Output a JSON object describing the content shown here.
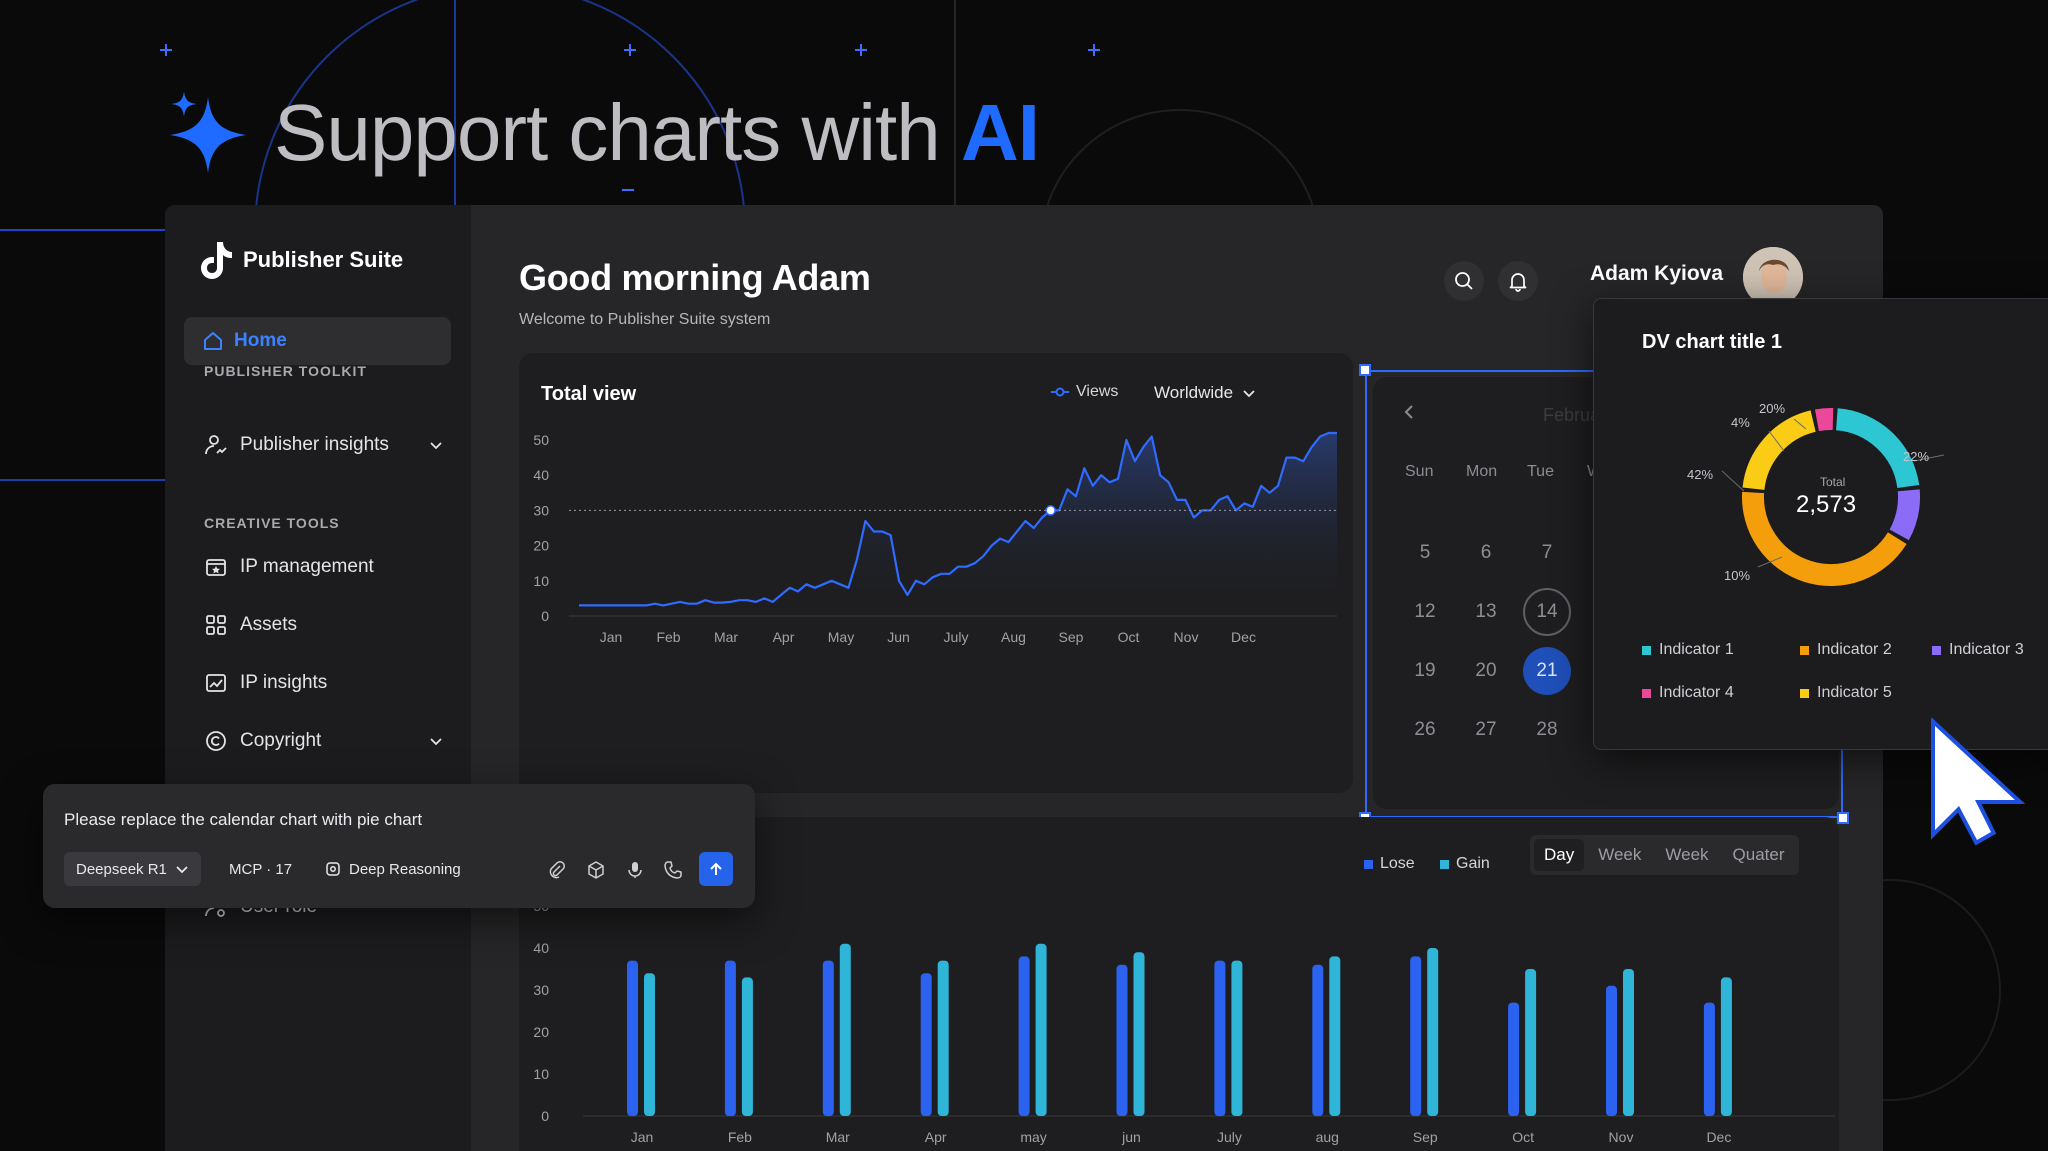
{
  "hero": {
    "title_prefix": "Support charts with ",
    "title_accent": "AI"
  },
  "app": {
    "brand": "Publisher Suite",
    "nav": {
      "home": "Home",
      "section_toolkit": "PUBLISHER TOOLKIT",
      "publisher_insights": "Publisher insights",
      "section_creative": "CREATIVE TOOLS",
      "ip_management": "IP management",
      "assets": "Assets",
      "ip_insights": "IP insights",
      "copyright": "Copyright",
      "user_role": "User role"
    },
    "greeting": "Good morning Adam",
    "subtitle": "Welcome to Publisher Suite system",
    "user_name": "Adam Kyiova"
  },
  "total_view": {
    "title": "Total view",
    "legend_label": "Views",
    "region_dropdown": "Worldwide",
    "accent_color": "#2f6bff"
  },
  "chart_data": [
    {
      "type": "line",
      "title": "Total view",
      "series": [
        {
          "name": "Views",
          "values": [
            3,
            3,
            3,
            3,
            3,
            3,
            3,
            3,
            3,
            3.5,
            3,
            3.5,
            4,
            3.5,
            3.5,
            4.5,
            3.8,
            3.8,
            4,
            4.5,
            4.5,
            4,
            5,
            4,
            6,
            8,
            7,
            9,
            8,
            9,
            10,
            9,
            8,
            16,
            27,
            24,
            24,
            23,
            10,
            6,
            10,
            9,
            11,
            12,
            12,
            14,
            14,
            15,
            17,
            20,
            22,
            21,
            24,
            27,
            25,
            28,
            30,
            30,
            36,
            34,
            42,
            37,
            40,
            38,
            39,
            50,
            44,
            48,
            51,
            40,
            38,
            33,
            33,
            28,
            30,
            30,
            33,
            34,
            30,
            32,
            31,
            37,
            35,
            37,
            45,
            45,
            44,
            48,
            51,
            52,
            52
          ]
        }
      ],
      "x_tick_labels": [
        "Jan",
        "Feb",
        "Mar",
        "Apr",
        "May",
        "Jun",
        "July",
        "Aug",
        "Sep",
        "Oct",
        "Nov",
        "Dec"
      ],
      "y_ticks": [
        0,
        10,
        20,
        30,
        40,
        50
      ],
      "ylim": [
        0,
        52
      ],
      "reference_line": 30,
      "highlight_value": 30
    },
    {
      "type": "bar",
      "categories": [
        "Jan",
        "Feb",
        "Mar",
        "Apr",
        "may",
        "jun",
        "July",
        "aug",
        "Sep",
        "Oct",
        "Nov",
        "Dec"
      ],
      "series": [
        {
          "name": "Lose",
          "color": "#2b63f0",
          "values": [
            37,
            37,
            37,
            34,
            38,
            36,
            37,
            36,
            38,
            27,
            31,
            27
          ]
        },
        {
          "name": "Gain",
          "color": "#2fb5d8",
          "values": [
            34,
            33,
            41,
            37,
            41,
            39,
            37,
            38,
            40,
            35,
            35,
            33
          ]
        }
      ],
      "y_ticks": [
        0,
        10,
        20,
        30,
        40,
        50
      ],
      "ylim": [
        0,
        50
      ],
      "legend": "top-right"
    },
    {
      "type": "pie",
      "title": "DV chart title 1",
      "center_label": "Total",
      "center_value": "2,573",
      "slices": [
        {
          "name": "Indicator 1",
          "value": 22,
          "label": "22%",
          "color": "#2dc6d3"
        },
        {
          "name": "Indicator 3",
          "value": 10,
          "label": "10%",
          "color": "#8b6cf6"
        },
        {
          "name": "Indicator 2",
          "value": 42,
          "label": "42%",
          "color": "#f59e0b"
        },
        {
          "name": "Indicator 5",
          "value": 20,
          "label": "20%",
          "color": "#facc15"
        },
        {
          "name": "Indicator 4",
          "value": 4,
          "label": "4%",
          "color": "#ec4899"
        }
      ],
      "legend": [
        "Indicator 1",
        "Indicator 2",
        "Indicator 3",
        "Indicator 4",
        "Indicator 5"
      ]
    }
  ],
  "bar_legend": {
    "lose": "Lose",
    "gain": "Gain"
  },
  "period_tabs": [
    "Day",
    "Week",
    "Week",
    "Quater"
  ],
  "calendar": {
    "month_partial": "Februa",
    "weekday_headers": [
      "Sun",
      "Mon",
      "Tue",
      "W"
    ],
    "rows": [
      [
        "5",
        "6",
        "7"
      ],
      [
        "12",
        "13",
        "14"
      ],
      [
        "19",
        "20",
        "21"
      ],
      [
        "26",
        "27",
        "28"
      ]
    ],
    "ringed_day": "14",
    "selected_day": "21"
  },
  "pie_popup": {
    "title": "DV chart title 1",
    "total_label": "Total",
    "total_value": "2,573",
    "percent_labels": {
      "p22": "22%",
      "p10": "10%",
      "p42": "42%",
      "p20": "20%",
      "p4": "4%"
    },
    "indicators": [
      "Indicator 1",
      "Indicator 2",
      "Indicator 3",
      "Indicator 4",
      "Indicator 5"
    ],
    "indicator_colors": [
      "#2dc6d3",
      "#f59e0b",
      "#8b6cf6",
      "#ec4899",
      "#facc15"
    ]
  },
  "prompt": {
    "text": "Please replace the calendar chart with pie chart",
    "model": "Deepseek R1",
    "mcp": "MCP · 17",
    "reasoning": "Deep Reasoning",
    "tools": [
      "paperclip-icon",
      "cube-icon",
      "microphone-icon",
      "phone-icon"
    ]
  }
}
